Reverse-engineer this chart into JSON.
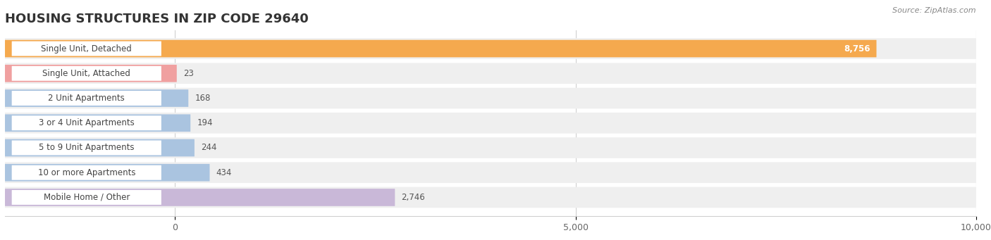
{
  "title": "HOUSING STRUCTURES IN ZIP CODE 29640",
  "source": "Source: ZipAtlas.com",
  "categories": [
    "Single Unit, Detached",
    "Single Unit, Attached",
    "2 Unit Apartments",
    "3 or 4 Unit Apartments",
    "5 to 9 Unit Apartments",
    "10 or more Apartments",
    "Mobile Home / Other"
  ],
  "values": [
    8756,
    23,
    168,
    194,
    244,
    434,
    2746
  ],
  "bar_colors": [
    "#f5a94e",
    "#f0a0a0",
    "#aac4e0",
    "#aac4e0",
    "#aac4e0",
    "#aac4e0",
    "#c9b8d8"
  ],
  "xlim_max": 10000,
  "xticks": [
    0,
    5000,
    10000
  ],
  "xtick_labels": [
    "0",
    "5,000",
    "10,000"
  ],
  "title_fontsize": 13,
  "label_fontsize": 8.5,
  "value_fontsize": 8.5,
  "background_color": "#ffffff",
  "row_bg_color": "#efefef",
  "row_gap_color": "#ffffff",
  "label_box_color": "#ffffff",
  "grid_color": "#d0d0d0"
}
